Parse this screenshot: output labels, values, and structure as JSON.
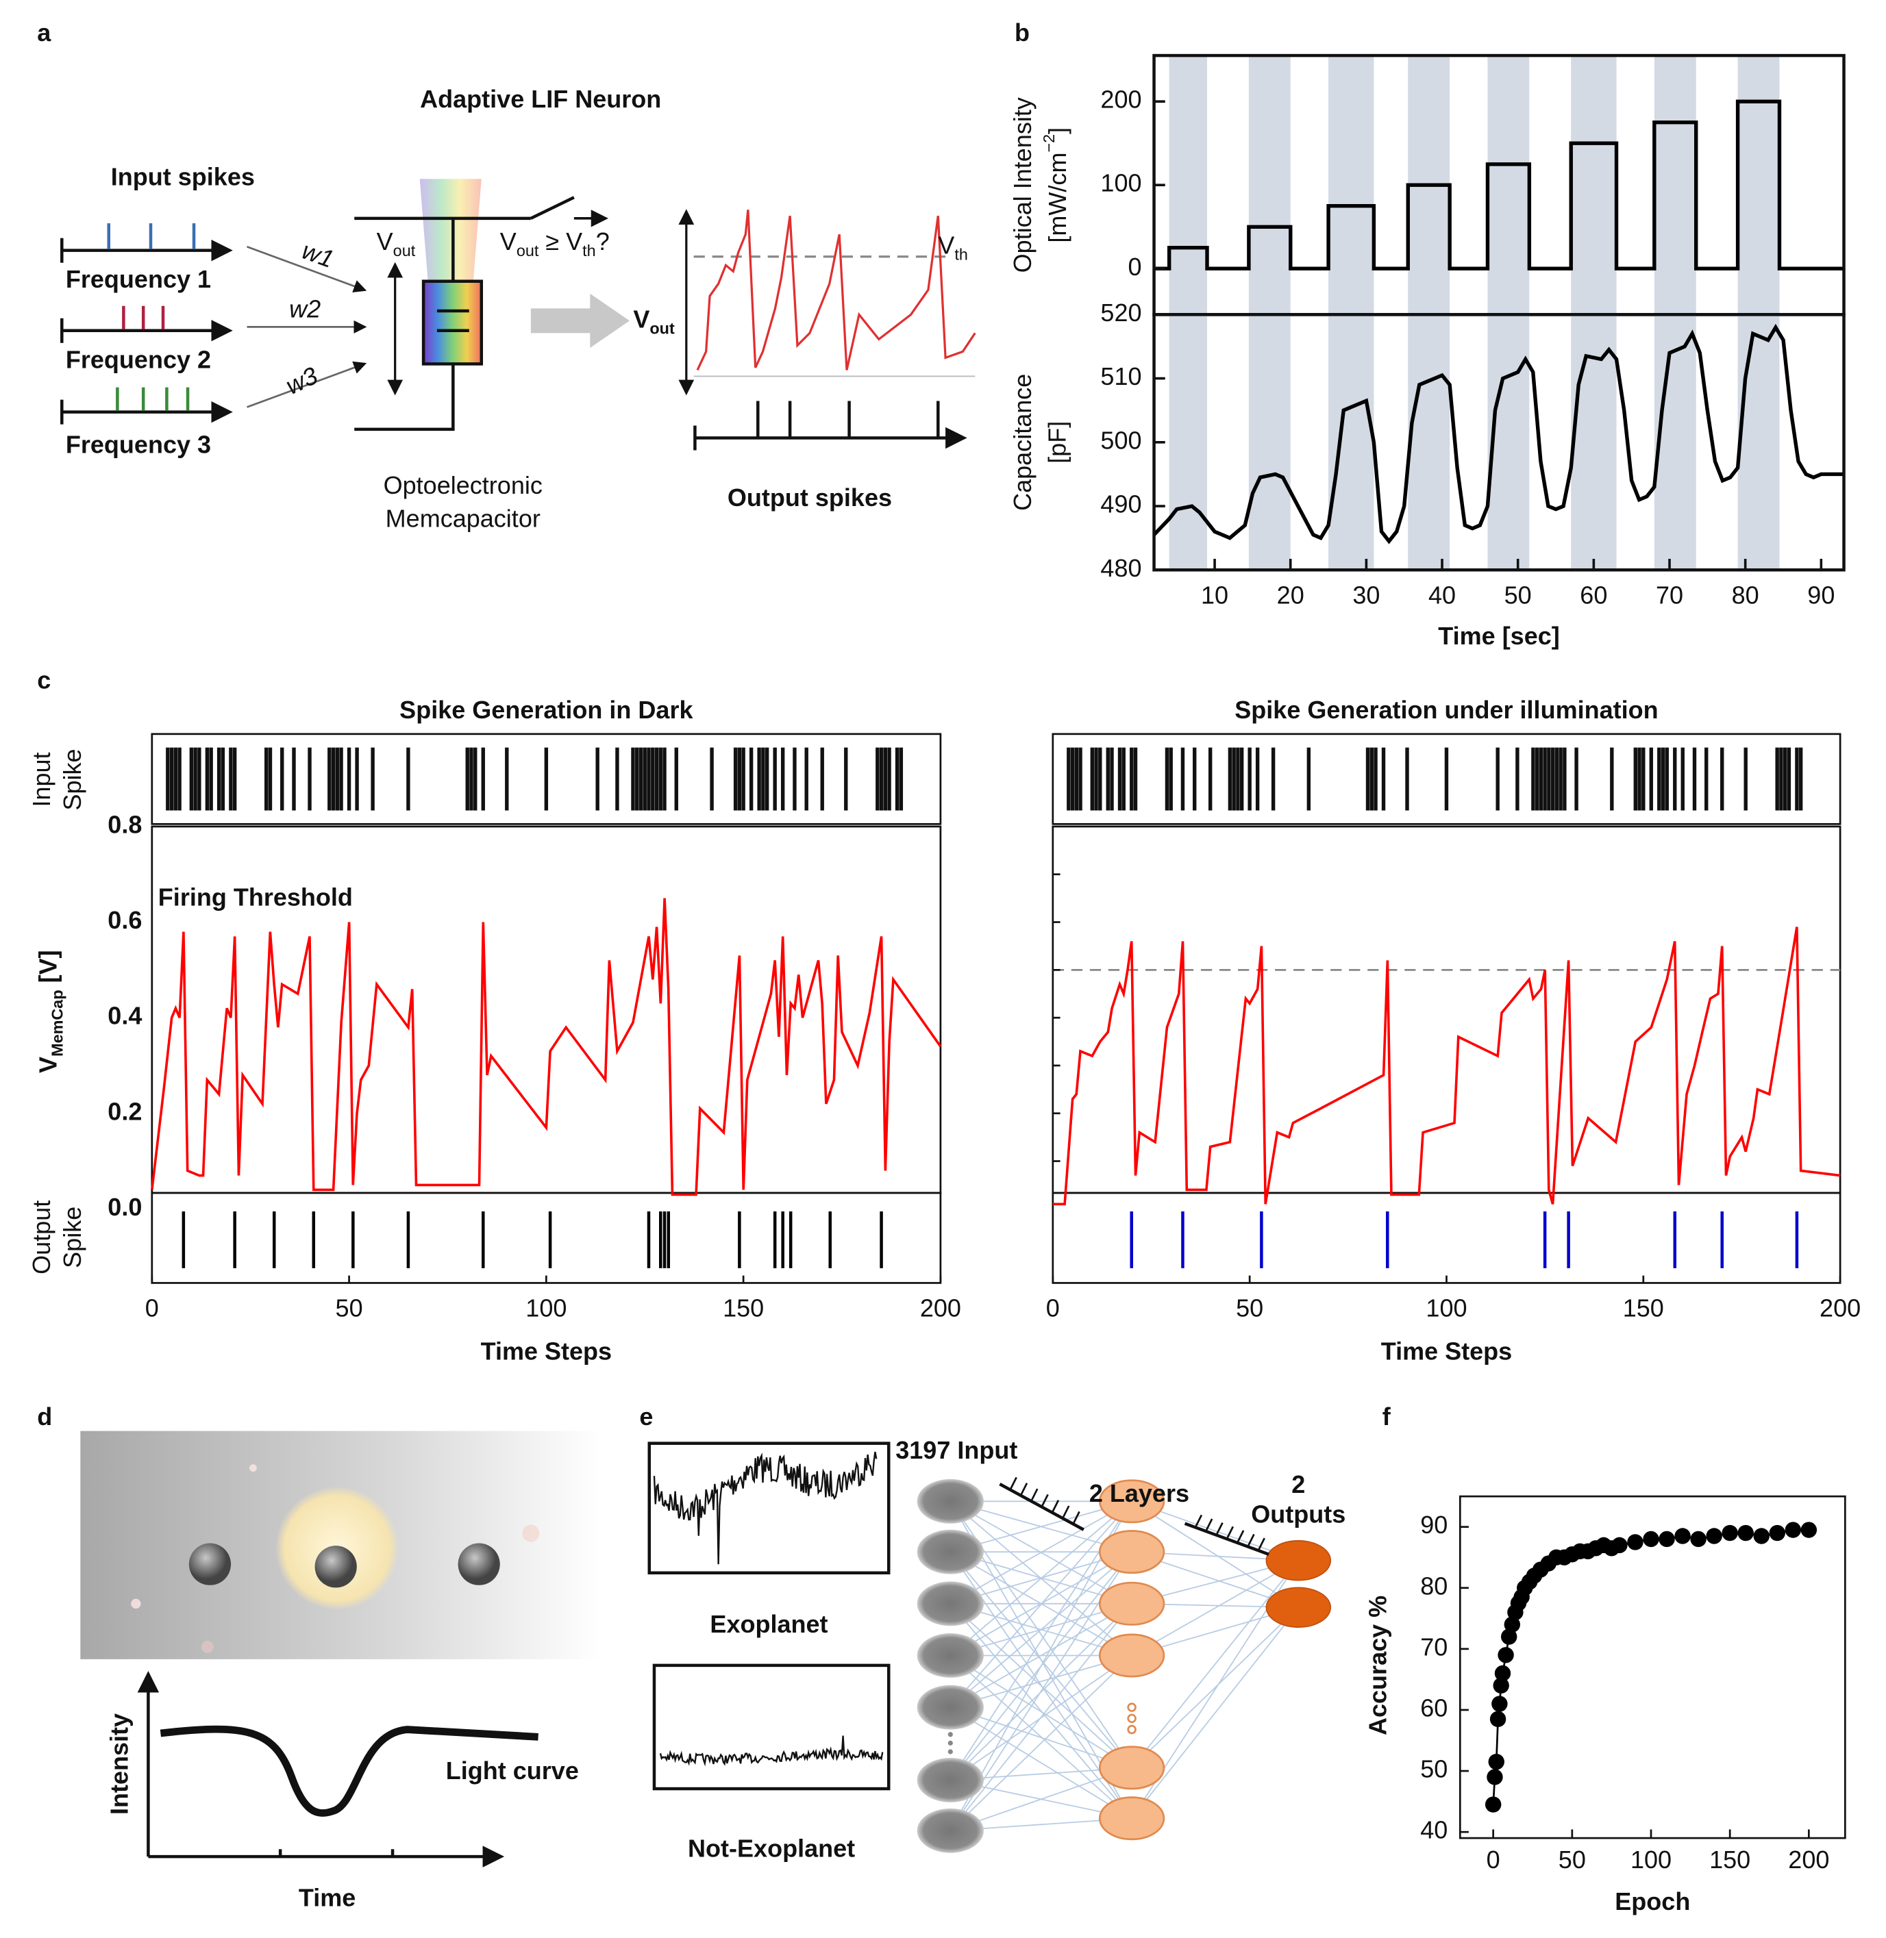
{
  "panel_labels": [
    "a",
    "b",
    "c",
    "d",
    "e",
    "f"
  ],
  "diagram_a": {
    "title": "Adaptive LIF Neuron",
    "input_title": "Input spikes",
    "frequencies": [
      "Frequency 1",
      "Frequency 2",
      "Frequency 3"
    ],
    "weights": [
      "w1",
      "w2",
      "w3"
    ],
    "vout": [
      "V",
      "out"
    ],
    "test": [
      "V",
      "out",
      " ≥ V",
      "th",
      "?"
    ],
    "vth": [
      "V",
      "th"
    ],
    "vout_plot": [
      "V",
      "out"
    ],
    "device": [
      "Optoelectronic",
      "Memcapacitor"
    ],
    "output_title": "Output spikes"
  },
  "diagram_d": {
    "intensity": "Intensity",
    "time": "Time",
    "curve": "Light curve"
  },
  "diagram_e": {
    "input": "3197 Input",
    "layers": "2 Layers",
    "outputs": [
      "2",
      "Outputs"
    ],
    "signals": [
      "Exoplanet",
      "Not-Exoplanet"
    ]
  },
  "chart_data": [
    {
      "type": "step",
      "ylabel": "Optical Intensity",
      "ylabel_units": [
        "[mW/cm",
        "−2",
        "]"
      ],
      "xlim": [
        2,
        93
      ],
      "ylim": [
        -55,
        255
      ],
      "yticks": [
        0,
        100,
        200
      ],
      "color": "#000000",
      "shade_color": "#d3dae4",
      "shaded_regions": [
        [
          4,
          9
        ],
        [
          14.5,
          20
        ],
        [
          25,
          31
        ],
        [
          35.5,
          41
        ],
        [
          46,
          51.5
        ],
        [
          57,
          63
        ],
        [
          68,
          73.5
        ],
        [
          79,
          84.5
        ]
      ],
      "x": [
        2,
        4,
        4,
        9,
        9,
        14.5,
        14.5,
        20,
        20,
        25,
        25,
        31,
        31,
        35.5,
        35.5,
        41,
        41,
        46,
        46,
        51.5,
        51.5,
        57,
        57,
        63,
        63,
        68,
        68,
        73.5,
        73.5,
        79,
        79,
        84.5,
        84.5,
        93
      ],
      "values": [
        0,
        0,
        25,
        25,
        0,
        0,
        50,
        50,
        0,
        0,
        75,
        75,
        0,
        0,
        100,
        100,
        0,
        0,
        125,
        125,
        0,
        0,
        150,
        150,
        0,
        0,
        175,
        175,
        0,
        0,
        200,
        200,
        0,
        0
      ]
    },
    {
      "type": "line",
      "ylabel": "Capacitance",
      "ylabel_units": "[pF]",
      "xlabel": "Time [sec]",
      "xlim": [
        2,
        93
      ],
      "ylim": [
        480,
        520
      ],
      "xticks": [
        10,
        20,
        30,
        40,
        50,
        60,
        70,
        80,
        90
      ],
      "yticks": [
        480,
        490,
        500,
        510,
        520
      ],
      "color": "#000000",
      "shade_color": "#d3dae4",
      "shaded_regions": [
        [
          4,
          9
        ],
        [
          14.5,
          20
        ],
        [
          25,
          31
        ],
        [
          35.5,
          41
        ],
        [
          46,
          51.5
        ],
        [
          57,
          63
        ],
        [
          68,
          73.5
        ],
        [
          79,
          84.5
        ]
      ],
      "x": [
        2,
        4,
        5,
        7,
        8,
        10,
        12,
        14,
        15,
        16,
        18,
        19,
        21,
        23,
        24,
        25,
        26,
        27,
        28,
        30,
        31,
        32,
        33,
        34,
        35,
        36,
        37,
        39,
        40,
        41,
        42,
        43,
        44,
        45,
        46,
        47,
        48,
        50,
        51,
        52,
        53,
        54,
        55,
        56,
        57,
        58,
        59,
        61,
        62,
        63,
        64,
        65,
        66,
        67,
        68,
        69,
        70,
        72,
        73,
        74,
        75,
        76,
        77,
        78,
        79,
        80,
        81,
        83,
        84,
        85,
        86,
        87,
        88,
        89,
        90,
        93
      ],
      "values": [
        485.5,
        488,
        489.5,
        490,
        489,
        486,
        485,
        487,
        492,
        494.5,
        495,
        494.5,
        490,
        485.5,
        485,
        487,
        495,
        505,
        505.5,
        506.5,
        500,
        486,
        484.5,
        486,
        490,
        503,
        509,
        510,
        510.5,
        509,
        496,
        487,
        486.5,
        487,
        490,
        505,
        510,
        511,
        513,
        511,
        497,
        490,
        489.5,
        490,
        496,
        509,
        513.5,
        513,
        514.5,
        513,
        505,
        494,
        491,
        491.5,
        493,
        505,
        514,
        515,
        517,
        514,
        505,
        497,
        494,
        494.5,
        496,
        510,
        517,
        516,
        518,
        516,
        505,
        497,
        495,
        494.5,
        495,
        495
      ]
    },
    {
      "type": "spike-line",
      "title": "Spike Generation in Dark",
      "xlabel": "Time Steps",
      "ylabel": [
        "V",
        "MemCap",
        " [V]"
      ],
      "input_spike_label": [
        "Input",
        "Spike"
      ],
      "output_spike_label": [
        "Output",
        "Spike"
      ],
      "annotation": "Firing Threshold",
      "xlim": [
        0,
        200
      ],
      "xticks": [
        0,
        50,
        100,
        150,
        200
      ],
      "ylim": [
        0,
        0.8
      ],
      "yticks": [
        {
          "value": 0,
          "label": "0.0"
        },
        0.2,
        0.4,
        0.6,
        0.8
      ],
      "color": "#ff0000",
      "output_spike_color": "#000000",
      "input_spikes": [
        4,
        5,
        6,
        7,
        10,
        11,
        12,
        14,
        15,
        17,
        18,
        20,
        21,
        29,
        30,
        33,
        36,
        40,
        45,
        46,
        47,
        48,
        50,
        52,
        56,
        65,
        80,
        81,
        82,
        84,
        90,
        100,
        113,
        118,
        122,
        123,
        124,
        125,
        126,
        127,
        128,
        129,
        130,
        133,
        142,
        148,
        149,
        150,
        152,
        154,
        155,
        156,
        158,
        160,
        163,
        166,
        170,
        176,
        184,
        185,
        186,
        187,
        189,
        190
      ],
      "output_spikes": [
        8,
        21,
        31,
        41,
        51,
        65,
        84,
        101,
        126,
        129,
        130,
        131,
        149,
        158,
        160,
        162,
        172,
        185
      ],
      "x": [
        0,
        3,
        5,
        6,
        7,
        8,
        9,
        12,
        13,
        14,
        16,
        17,
        19,
        20,
        21,
        22,
        23,
        28,
        30,
        31,
        32,
        33,
        37,
        40,
        41,
        46,
        48,
        50,
        51,
        52,
        53,
        55,
        57,
        65,
        66,
        67,
        70,
        83,
        84,
        85,
        86,
        100,
        101,
        105,
        115,
        116,
        118,
        122,
        126,
        127,
        128,
        129,
        130,
        131,
        132,
        138,
        139,
        145,
        149,
        150,
        151,
        155,
        157,
        158,
        159,
        160,
        161,
        162,
        163,
        164,
        165,
        169,
        170,
        171,
        173,
        174,
        175,
        179,
        182,
        185,
        186,
        187,
        188,
        200
      ],
      "values": [
        0.04,
        0.25,
        0.4,
        0.42,
        0.4,
        0.58,
        0.08,
        0.07,
        0.07,
        0.27,
        0.25,
        0.24,
        0.42,
        0.4,
        0.57,
        0.07,
        0.28,
        0.22,
        0.58,
        0.47,
        0.38,
        0.47,
        0.45,
        0.57,
        0.04,
        0.04,
        0.39,
        0.6,
        0.05,
        0.2,
        0.27,
        0.3,
        0.47,
        0.38,
        0.46,
        0.05,
        0.05,
        0.05,
        0.6,
        0.28,
        0.32,
        0.17,
        0.33,
        0.38,
        0.27,
        0.52,
        0.33,
        0.39,
        0.57,
        0.48,
        0.59,
        0.43,
        0.65,
        0.46,
        0.03,
        0.03,
        0.21,
        0.16,
        0.53,
        0.04,
        0.27,
        0.39,
        0.45,
        0.52,
        0.36,
        0.57,
        0.28,
        0.43,
        0.42,
        0.49,
        0.4,
        0.52,
        0.43,
        0.22,
        0.27,
        0.53,
        0.37,
        0.3,
        0.41,
        0.57,
        0.08,
        0.35,
        0.48,
        0.34
      ]
    },
    {
      "type": "spike-line",
      "title": "Spike Generation under illumination",
      "xlabel": "Time Steps",
      "xlim": [
        0,
        200
      ],
      "xticks": [
        0,
        50,
        100,
        150,
        200
      ],
      "ylim": [
        0,
        0.8
      ],
      "ytick_marks": [
        0.1,
        0.2,
        0.3,
        0.4,
        0.5,
        0.6,
        0.7
      ],
      "threshold": 0.5,
      "color": "#ff0000",
      "output_spike_color": "#0000cc",
      "input_spikes": [
        4,
        5,
        6,
        7,
        10,
        11,
        12,
        14,
        15,
        17,
        18,
        20,
        21,
        29,
        30,
        33,
        36,
        40,
        45,
        46,
        47,
        48,
        50,
        52,
        56,
        65,
        80,
        81,
        82,
        84,
        90,
        100,
        113,
        118,
        122,
        123,
        124,
        125,
        126,
        127,
        128,
        129,
        130,
        133,
        142,
        148,
        149,
        150,
        152,
        154,
        155,
        156,
        158,
        160,
        163,
        166,
        170,
        176,
        184,
        185,
        186,
        187,
        189,
        190
      ],
      "output_spikes": [
        20,
        33,
        53,
        85,
        125,
        131,
        158,
        170,
        189
      ],
      "x": [
        0,
        3,
        5,
        6,
        7,
        10,
        12,
        14,
        15,
        17,
        18,
        19,
        20,
        21,
        22,
        26,
        29,
        32,
        33,
        34,
        39,
        40,
        45,
        49,
        50,
        52,
        53,
        54,
        57,
        60,
        61,
        68,
        84,
        85,
        86,
        93,
        94,
        102,
        103,
        113,
        114,
        121,
        122,
        124,
        125,
        126,
        127,
        131,
        132,
        136,
        143,
        148,
        152,
        156,
        157,
        158,
        159,
        161,
        163,
        165,
        167,
        169,
        170,
        171,
        172,
        175,
        176,
        178,
        179,
        182,
        185,
        189,
        190,
        200
      ],
      "values": [
        0.01,
        0.01,
        0.23,
        0.24,
        0.33,
        0.32,
        0.35,
        0.37,
        0.42,
        0.47,
        0.45,
        0.5,
        0.56,
        0.07,
        0.16,
        0.14,
        0.38,
        0.45,
        0.56,
        0.04,
        0.04,
        0.13,
        0.14,
        0.44,
        0.43,
        0.46,
        0.55,
        0.01,
        0.16,
        0.15,
        0.18,
        0.21,
        0.28,
        0.52,
        0.03,
        0.03,
        0.16,
        0.18,
        0.36,
        0.32,
        0.41,
        0.48,
        0.44,
        0.46,
        0.5,
        0.04,
        0.01,
        0.52,
        0.09,
        0.19,
        0.14,
        0.35,
        0.38,
        0.48,
        0.52,
        0.56,
        0.05,
        0.24,
        0.3,
        0.37,
        0.44,
        0.45,
        0.55,
        0.07,
        0.11,
        0.15,
        0.12,
        0.19,
        0.25,
        0.24,
        0.39,
        0.59,
        0.08,
        0.07
      ]
    },
    {
      "type": "scatter-line",
      "xlabel": "Epoch",
      "ylabel": "Accuracy %",
      "xlim": [
        -21,
        223
      ],
      "xticks": [
        0,
        50,
        100,
        150,
        200
      ],
      "ylim": [
        39,
        95
      ],
      "yticks": [
        40,
        50,
        60,
        70,
        80,
        90
      ],
      "color": "#000000",
      "x": [
        0,
        1,
        2,
        3,
        4,
        5,
        6,
        8,
        10,
        12,
        14,
        16,
        18,
        20,
        23,
        26,
        30,
        35,
        40,
        45,
        50,
        55,
        60,
        65,
        70,
        75,
        80,
        90,
        100,
        110,
        120,
        130,
        140,
        150,
        160,
        170,
        180,
        190,
        200
      ],
      "values": [
        44.5,
        49,
        51.5,
        58.5,
        61,
        64,
        66,
        69,
        72,
        74,
        76,
        77.5,
        78.5,
        80,
        81,
        82,
        83,
        84,
        85,
        85,
        85.5,
        86,
        86,
        86.5,
        87,
        86.5,
        87,
        87.5,
        88,
        88,
        88.5,
        88,
        88.5,
        89,
        89,
        88.5,
        89,
        89.5,
        89.5
      ]
    }
  ]
}
